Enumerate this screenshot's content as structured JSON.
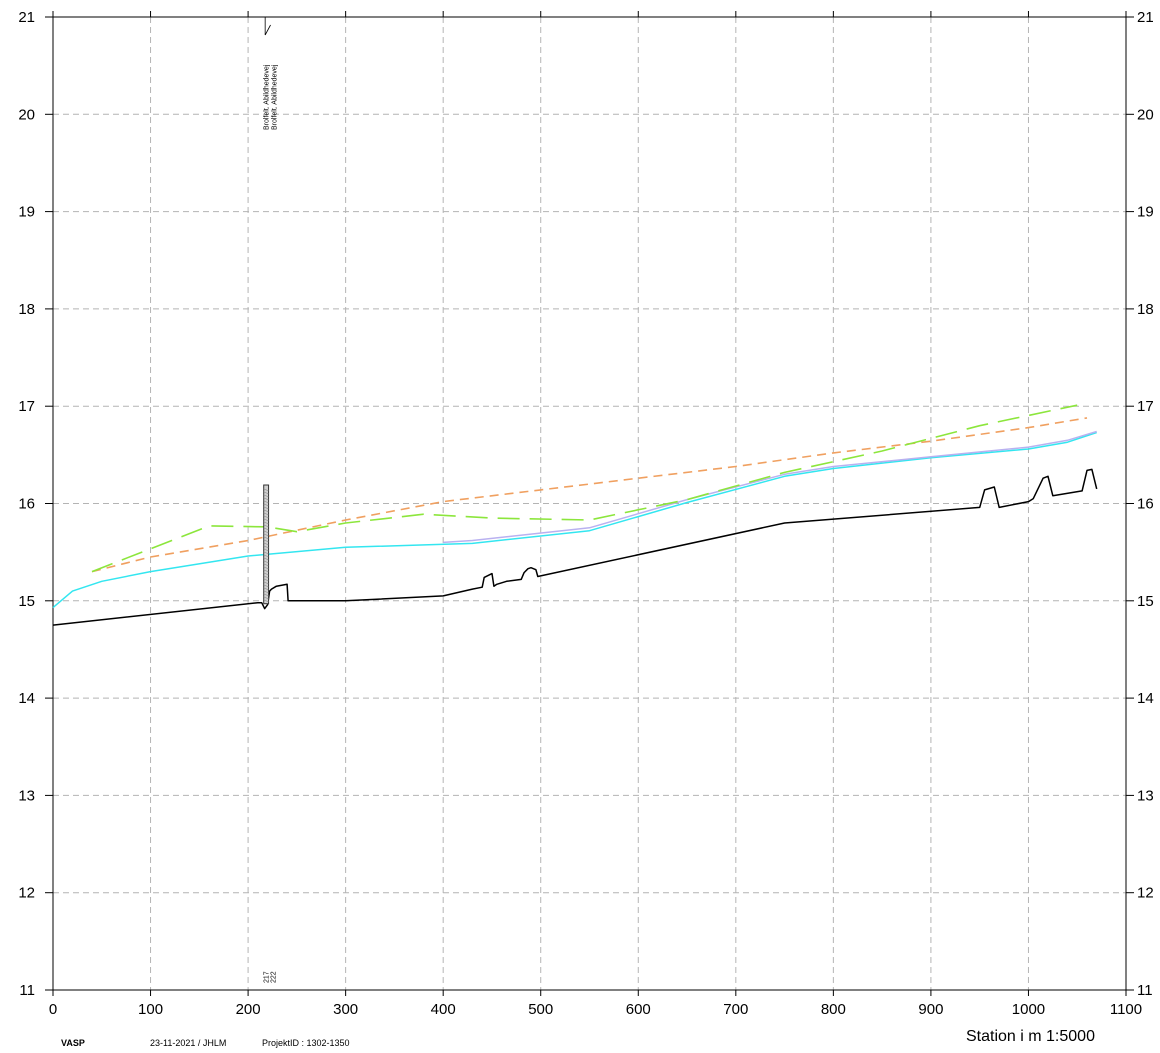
{
  "chart_data": {
    "type": "line",
    "xlim": [
      0,
      1100
    ],
    "ylim": [
      11,
      21
    ],
    "x_ticks": [
      "0",
      "100",
      "200",
      "300",
      "400",
      "500",
      "600",
      "700",
      "800",
      "900",
      "1000",
      "1100"
    ],
    "y_ticks": [
      "11",
      "12",
      "13",
      "14",
      "15",
      "16",
      "17",
      "18",
      "19",
      "20",
      "21"
    ],
    "grid": true,
    "xlabel": "Station i m  1:5000",
    "annotations": {
      "structure_labels": [
        "Brolfelt. Abildhedevej",
        "Brolfelt. Abildhedevej"
      ],
      "station_labels": [
        "217",
        "222"
      ]
    },
    "series": [
      {
        "style": "solid",
        "color": "#000000",
        "x": [
          0,
          210,
          214,
          217,
          220,
          222,
          224,
          229,
          240,
          241,
          300,
          400,
          430,
          440,
          442,
          450,
          452,
          455,
          465,
          480,
          483,
          487,
          490,
          495,
          497,
          750,
          950,
          955,
          965,
          970,
          1000,
          1005,
          1015,
          1020,
          1025,
          1055,
          1060,
          1065,
          1070
        ],
        "y": [
          14.75,
          14.98,
          14.98,
          14.92,
          14.96,
          15.1,
          15.12,
          15.15,
          15.17,
          15.0,
          15.0,
          15.05,
          15.12,
          15.14,
          15.24,
          15.28,
          15.15,
          15.17,
          15.2,
          15.22,
          15.29,
          15.33,
          15.34,
          15.32,
          15.25,
          15.8,
          15.96,
          16.14,
          16.17,
          15.96,
          16.02,
          16.05,
          16.26,
          16.28,
          16.08,
          16.13,
          16.34,
          16.35,
          16.15
        ]
      },
      {
        "style": "solid",
        "color": "#33e6f0",
        "x": [
          0,
          20,
          50,
          100,
          200,
          300,
          430,
          550,
          650,
          750,
          800,
          900,
          1000,
          1040,
          1070
        ],
        "y": [
          14.93,
          15.1,
          15.2,
          15.3,
          15.46,
          15.55,
          15.59,
          15.72,
          16.01,
          16.28,
          16.36,
          16.47,
          16.56,
          16.63,
          16.73
        ]
      },
      {
        "style": "solid",
        "color": "#b9b1f0",
        "x": [
          400,
          430,
          550,
          650,
          750,
          800,
          900,
          1000,
          1040,
          1070
        ],
        "y": [
          15.6,
          15.62,
          15.75,
          16.04,
          16.3,
          16.38,
          16.48,
          16.58,
          16.65,
          16.74
        ]
      },
      {
        "style": "dashed",
        "color": "#f0a060",
        "x": [
          40,
          100,
          200,
          300,
          400,
          500,
          600,
          700,
          800,
          900,
          1000,
          1060
        ],
        "y": [
          15.3,
          15.45,
          15.62,
          15.83,
          16.02,
          16.14,
          16.26,
          16.38,
          16.52,
          16.64,
          16.78,
          16.88
        ]
      },
      {
        "style": "dashed",
        "color": "#8ce63c",
        "x": [
          40,
          160,
          220,
          250,
          300,
          380,
          450,
          550,
          650,
          750,
          850,
          950,
          1050
        ],
        "y": [
          15.3,
          15.77,
          15.76,
          15.71,
          15.8,
          15.89,
          15.85,
          15.83,
          16.04,
          16.32,
          16.54,
          16.8,
          17.01
        ]
      }
    ]
  },
  "footer": {
    "logo": "VASP",
    "date_user": "23-11-2021 / JHLM",
    "project": "ProjektID : 1302-1350"
  }
}
